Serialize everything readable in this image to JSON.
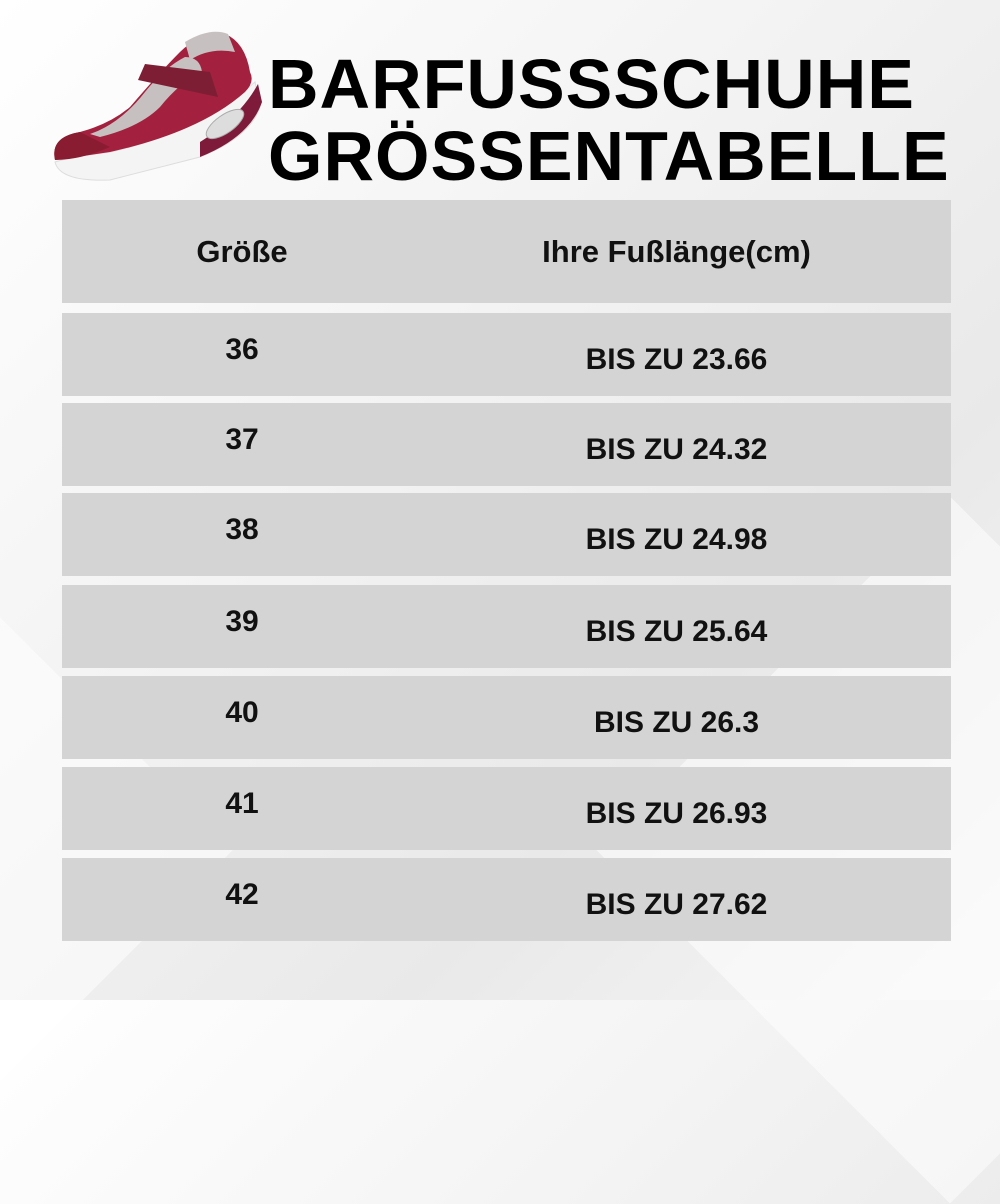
{
  "title": {
    "line1": "BARFUSSSCHUHE",
    "line2": "GRÖSSENTABELLE"
  },
  "shoe_color": "#9b1b3a",
  "table": {
    "headers": [
      "Größe",
      "Ihre Fußlänge(cm)"
    ],
    "rows": [
      {
        "size": "36",
        "length": "BIS ZU 23.66"
      },
      {
        "size": "37",
        "length": "BIS ZU 24.32"
      },
      {
        "size": "38",
        "length": "BIS ZU 24.98"
      },
      {
        "size": "39",
        "length": "BIS ZU 25.64"
      },
      {
        "size": "40",
        "length": "BIS ZU 26.3"
      },
      {
        "size": "41",
        "length": "BIS ZU 26.93"
      },
      {
        "size": "42",
        "length": "BIS ZU 27.62"
      }
    ]
  }
}
